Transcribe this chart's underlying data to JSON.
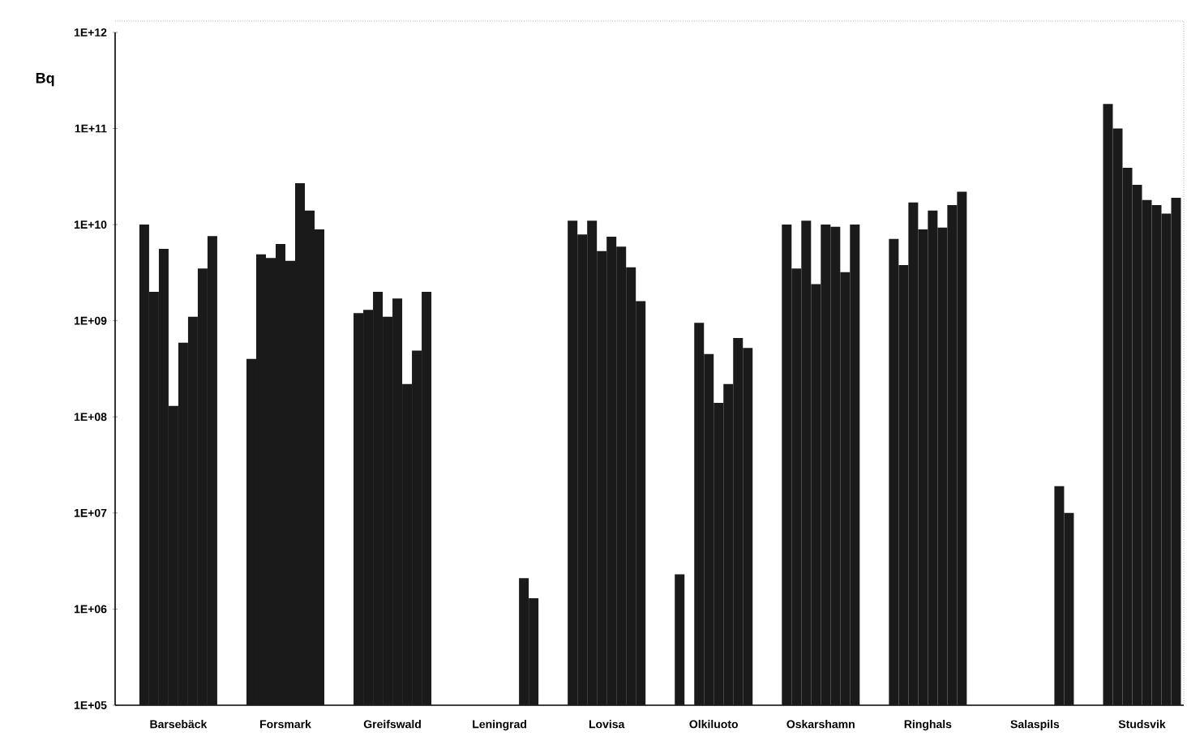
{
  "chart_data": {
    "type": "bar",
    "ylabel": "Bq",
    "log": "y",
    "categories": [
      "Barsebäck",
      "Forsmark",
      "Greifswald",
      "Leningrad",
      "Lovisa",
      "Olkiluoto",
      "Oskarshamn",
      "Ringhals",
      "Salaspils",
      "Studsvik"
    ],
    "series": [
      {
        "color": "#1a1a1a",
        "values": [
          10000000000.0,
          400000000.0,
          1200000000.0,
          null,
          11000000000.0,
          2300000.0,
          10000000000.0,
          7100000000.0,
          null,
          180000000000.0
        ]
      },
      {
        "color": "#1a1a1a",
        "values": [
          2000000000.0,
          4900000000.0,
          1300000000.0,
          null,
          7900000000.0,
          null,
          3500000000.0,
          3800000000.0,
          null,
          100000000000.0
        ]
      },
      {
        "color": "#1a1a1a",
        "values": [
          5600000000.0,
          4500000000.0,
          2000000000.0,
          null,
          11000000000.0,
          950000000.0,
          11000000000.0,
          17000000000.0,
          null,
          39000000000.0
        ]
      },
      {
        "color": "#1a1a1a",
        "values": [
          130000000.0,
          6300000000.0,
          1100000000.0,
          null,
          5300000000.0,
          450000000.0,
          2400000000.0,
          8900000000.0,
          null,
          26000000000.0
        ]
      },
      {
        "color": "#1a1a1a",
        "values": [
          590000000.0,
          4200000000.0,
          1700000000.0,
          null,
          7500000000.0,
          140000000.0,
          10000000000.0,
          14000000000.0,
          null,
          18000000000.0
        ]
      },
      {
        "color": "#1a1a1a",
        "values": [
          1100000000.0,
          27000000000.0,
          220000000.0,
          null,
          5900000000.0,
          220000000.0,
          9500000000.0,
          9300000000.0,
          null,
          16000000000.0
        ]
      },
      {
        "color": "#1a1a1a",
        "values": [
          3500000000.0,
          14000000000.0,
          490000000.0,
          2100000.0,
          3600000000.0,
          660000000.0,
          3200000000.0,
          16000000000.0,
          19000000.0,
          13000000000.0
        ]
      },
      {
        "color": "#1a1a1a",
        "values": [
          7600000000.0,
          8900000000.0,
          2000000000.0,
          1300000.0,
          1600000000.0,
          520000000.0,
          10000000000.0,
          22000000000.0,
          10000000.0,
          19000000000.0
        ]
      }
    ],
    "ylim": [
      100000.0,
      1000000000000.0
    ],
    "yticks": [
      {
        "value": 100000.0,
        "label": "1E+05"
      },
      {
        "value": 1000000.0,
        "label": "1E+06"
      },
      {
        "value": 10000000.0,
        "label": "1E+07"
      },
      {
        "value": 100000000.0,
        "label": "1E+08"
      },
      {
        "value": 1000000000.0,
        "label": "1E+09"
      },
      {
        "value": 10000000000.0,
        "label": "1E+10"
      },
      {
        "value": 100000000000.0,
        "label": "1E+11"
      },
      {
        "value": 1000000000000.0,
        "label": "1E+12"
      }
    ]
  }
}
